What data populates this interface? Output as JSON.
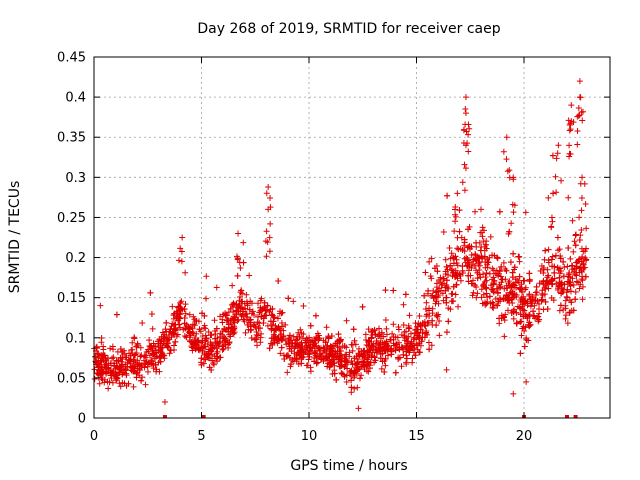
{
  "chart_data": {
    "type": "scatter",
    "title": "Day 268 of 2019, SRMTID for receiver caep",
    "xlabel": "GPS time / hours",
    "ylabel": "SRMTID / TECUs",
    "xlim": [
      0,
      24
    ],
    "ylim": [
      0,
      0.45
    ],
    "xticks": [
      "0",
      "5",
      "10",
      "15",
      "20"
    ],
    "yticks": [
      "0",
      "0.05",
      "0.1",
      "0.15",
      "0.2",
      "0.25",
      "0.3",
      "0.35",
      "0.4",
      "0.45"
    ],
    "grid": true,
    "marker": "+",
    "color": "#e00000",
    "trend": [
      [
        0.0,
        0.075
      ],
      [
        0.5,
        0.065
      ],
      [
        1.0,
        0.06
      ],
      [
        1.5,
        0.065
      ],
      [
        2.0,
        0.07
      ],
      [
        2.5,
        0.075
      ],
      [
        3.0,
        0.08
      ],
      [
        3.5,
        0.1
      ],
      [
        4.0,
        0.13
      ],
      [
        4.5,
        0.11
      ],
      [
        5.0,
        0.09
      ],
      [
        5.5,
        0.085
      ],
      [
        6.0,
        0.1
      ],
      [
        6.5,
        0.125
      ],
      [
        7.0,
        0.14
      ],
      [
        7.5,
        0.11
      ],
      [
        8.0,
        0.13
      ],
      [
        8.5,
        0.11
      ],
      [
        9.0,
        0.085
      ],
      [
        9.5,
        0.09
      ],
      [
        10.0,
        0.085
      ],
      [
        10.5,
        0.085
      ],
      [
        11.0,
        0.08
      ],
      [
        11.5,
        0.075
      ],
      [
        12.0,
        0.06
      ],
      [
        12.5,
        0.07
      ],
      [
        13.0,
        0.095
      ],
      [
        13.5,
        0.09
      ],
      [
        14.0,
        0.095
      ],
      [
        14.5,
        0.09
      ],
      [
        15.0,
        0.1
      ],
      [
        15.5,
        0.12
      ],
      [
        16.0,
        0.15
      ],
      [
        16.5,
        0.17
      ],
      [
        17.0,
        0.19
      ],
      [
        17.5,
        0.2
      ],
      [
        18.0,
        0.19
      ],
      [
        18.5,
        0.17
      ],
      [
        19.0,
        0.15
      ],
      [
        19.5,
        0.16
      ],
      [
        20.0,
        0.13
      ],
      [
        20.5,
        0.15
      ],
      [
        21.0,
        0.17
      ],
      [
        21.5,
        0.18
      ],
      [
        22.0,
        0.16
      ],
      [
        22.5,
        0.18
      ],
      [
        22.8,
        0.2
      ]
    ],
    "bursts": [
      [
        4.1,
        0.225
      ],
      [
        6.7,
        0.23
      ],
      [
        8.1,
        0.26
      ],
      [
        8.1,
        0.288
      ],
      [
        17.3,
        0.38
      ],
      [
        17.3,
        0.4
      ],
      [
        17.3,
        0.34
      ],
      [
        19.2,
        0.35
      ],
      [
        19.5,
        0.3
      ],
      [
        21.3,
        0.25
      ],
      [
        21.6,
        0.34
      ],
      [
        22.2,
        0.37
      ],
      [
        22.2,
        0.39
      ],
      [
        22.6,
        0.42
      ],
      [
        22.6,
        0.4
      ],
      [
        22.7,
        0.3
      ],
      [
        18.0,
        0.26
      ],
      [
        16.9,
        0.28
      ]
    ],
    "zero_markers": [
      3.3,
      5.1,
      20.0,
      22.0,
      22.4
    ],
    "low_outliers": [
      [
        3.3,
        0.02
      ],
      [
        12.3,
        0.012
      ],
      [
        19.5,
        0.03
      ],
      [
        20.1,
        0.045
      ],
      [
        16.4,
        0.06
      ]
    ],
    "point_count": 2600
  }
}
